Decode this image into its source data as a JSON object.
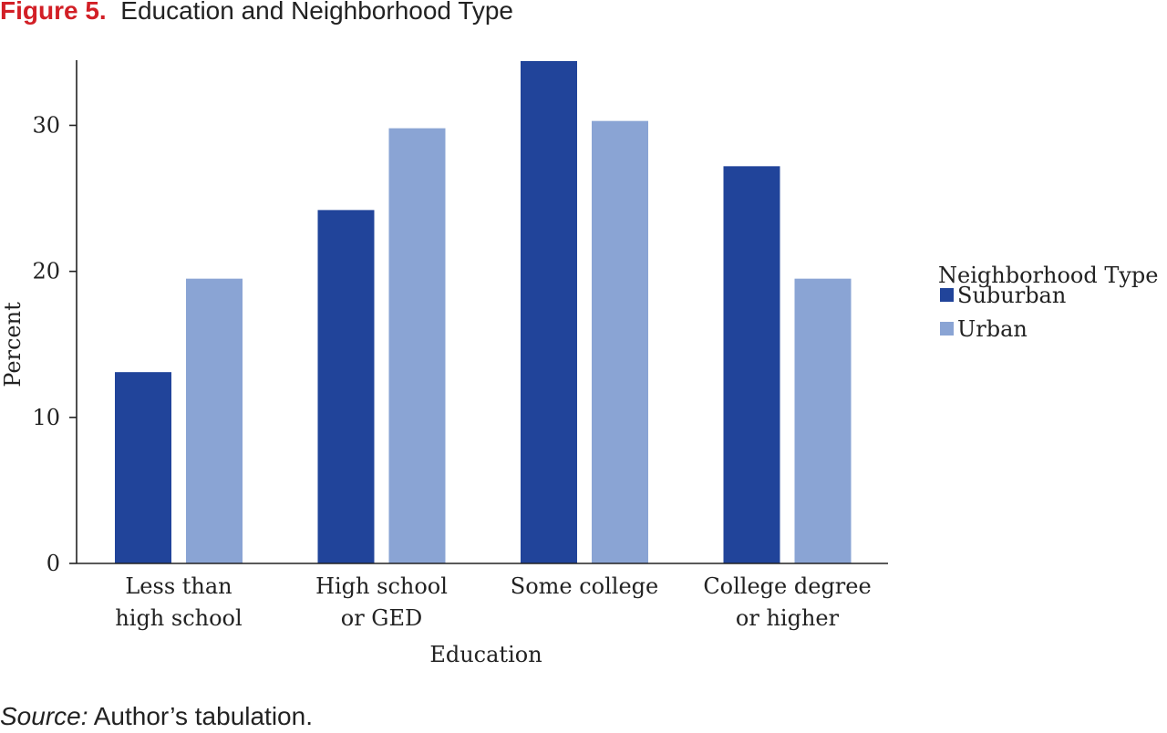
{
  "figure": {
    "number": "Figure 5.",
    "title": "Education and Neighborhood Type"
  },
  "source": {
    "label": "Source:",
    "text": " Author’s tabulation."
  },
  "colors": {
    "suburban": "#21449a",
    "urban": "#8aa4d4",
    "axis": "#222222",
    "figure_number": "#d21f26"
  },
  "chart_data": {
    "type": "bar",
    "xlabel": "Education",
    "ylabel": "Percent",
    "ylim": [
      0,
      34.4
    ],
    "yticks": [
      0,
      10,
      20,
      30
    ],
    "grid": false,
    "legend_position": "right",
    "legend_title": "Neighborhood Type",
    "categories": [
      [
        "Less than",
        "high school"
      ],
      [
        "High school",
        "or GED"
      ],
      [
        "Some college"
      ],
      [
        "College degree",
        "or higher"
      ]
    ],
    "series": [
      {
        "name": "Suburban",
        "color": "#21449a",
        "values": [
          13.1,
          24.2,
          34.4,
          27.2
        ]
      },
      {
        "name": "Urban",
        "color": "#8aa4d4",
        "values": [
          19.5,
          29.8,
          30.3,
          19.5
        ]
      }
    ]
  }
}
